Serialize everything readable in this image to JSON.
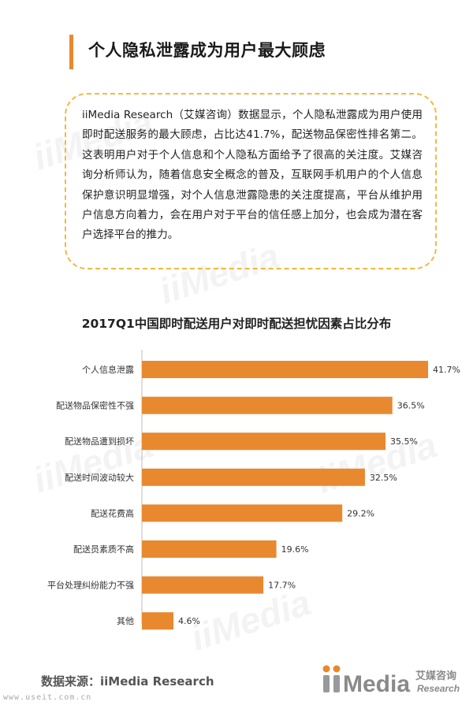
{
  "heading": "个人隐私泄露成为用户最大顾虑",
  "callout": {
    "text": "iiMedia Research（艾媒咨询）数据显示，个人隐私泄露成为用户使用即时配送服务的最大顾虑，占比达41.7%，配送物品保密性排名第二。这表明用户对于个人信息和个人隐私方面给予了很高的关注度。艾媒咨询分析师认为，随着信息安全概念的普及，互联网手机用户的个人信息保护意识明显增强，对个人信息泄露隐患的关注度提高，平台从维护用户信息方向着力，会在用户对于平台的信任感上加分，也会成为潜在客户选择平台的推力。"
  },
  "chart_data": {
    "type": "bar",
    "orientation": "horizontal",
    "title": "2017Q1中国即时配送用户对即时配送担忧因素占比分布",
    "categories": [
      "个人信息泄露",
      "配送物品保密性不强",
      "配送物品遭到损坏",
      "配送时间波动较大",
      "配送花费高",
      "配送员素质不高",
      "平台处理纠纷能力不强",
      "其他"
    ],
    "values": [
      41.7,
      36.5,
      35.5,
      32.5,
      29.2,
      19.6,
      17.7,
      4.6
    ],
    "value_labels": [
      "41.7%",
      "36.5%",
      "35.5%",
      "32.5%",
      "29.2%",
      "19.6%",
      "17.7%",
      "4.6%"
    ],
    "unit": "%",
    "xlim": [
      0,
      41.7
    ],
    "grid": false,
    "legend": "none",
    "bar_color": "#e8892f"
  },
  "source": "数据来源：iiMedia Research",
  "site": "www.useit.com.cn",
  "logo": {
    "brand": "iiMedia",
    "cn": "艾媒咨询",
    "en": "Research",
    "color": "#888888",
    "accent": "#e8892f"
  },
  "watermark": "iiMedia"
}
